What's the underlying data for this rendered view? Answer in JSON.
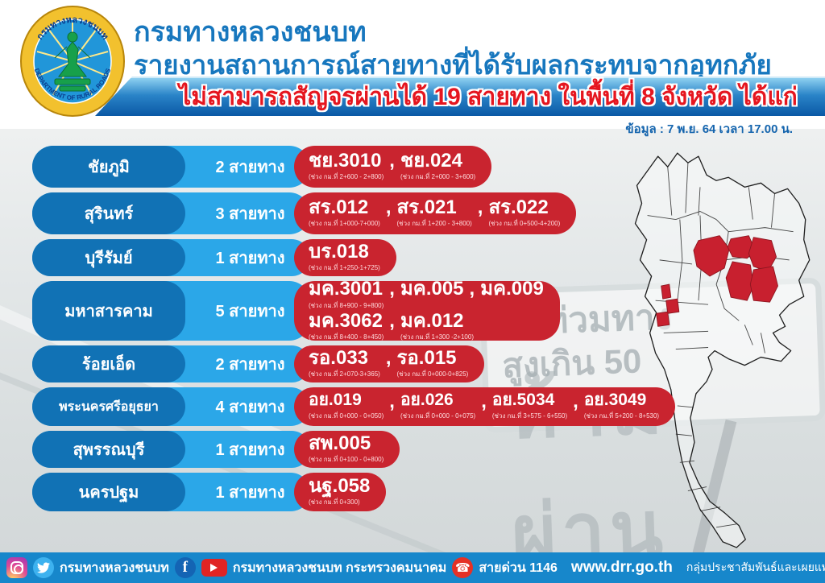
{
  "header": {
    "org_name": "กรมทางหลวงชนบท",
    "report_title": "รายงานสถานการณ์สายทางที่ได้รับผลกระทบจากอุทกภัย",
    "banner": "ไม่สามารถสัญจรผ่านได้ 19 สายทาง ในพื้นที่ 8 จังหวัด ได้แก่",
    "data_timestamp": "ข้อมูล : 7 พ.ย. 64 เวลา 17.00 น.",
    "logo": {
      "ring_text_top": "กรมทางหลวงชนบท",
      "ring_text_bottom": "DEPARTMENT OF RURAL ROADS"
    }
  },
  "rows": [
    {
      "province": "ชัยภูมิ",
      "count_label": "2 สายทาง",
      "route_lines": [
        [
          {
            "code": "ชย.3010",
            "segment": "(ช่วง กม.ที่ 2+600 - 2+800)"
          },
          {
            "code": "ชย.024",
            "segment": "(ช่วง กม.ที่ 2+000 - 3+600)"
          }
        ]
      ]
    },
    {
      "province": "สุรินทร์",
      "count_label": "3 สายทาง",
      "route_lines": [
        [
          {
            "code": "สร.012",
            "segment": "(ช่วง กม.ที่ 1+000-7+000)"
          },
          {
            "code": "สร.021",
            "segment": "(ช่วง กม.ที่ 1+200 - 3+800)"
          },
          {
            "code": "สร.022",
            "segment": "(ช่วง กม.ที่ 0+500-4+200)"
          }
        ]
      ]
    },
    {
      "province": "บุรีรัมย์",
      "count_label": "1 สายทาง",
      "route_lines": [
        [
          {
            "code": "บร.018",
            "segment": "(ช่วง กม.ที่ 1+250-1+725)"
          }
        ]
      ]
    },
    {
      "province": "มหาสารคาม",
      "count_label": "5 สายทาง",
      "route_lines": [
        [
          {
            "code": "มค.3001",
            "segment": "(ช่วง กม.ที่ 8+900 - 9+800)"
          },
          {
            "code": "มค.005",
            "segment": ""
          },
          {
            "code": "มค.009",
            "segment": ""
          }
        ],
        [
          {
            "code": "มค.3062",
            "segment": "(ช่วง กม.ที่ 8+400 - 8+450)"
          },
          {
            "code": "มค.012",
            "segment": "(ช่วง กม.ที่ 1+300 -2+100)"
          }
        ]
      ]
    },
    {
      "province": "ร้อยเอ็ด",
      "count_label": "2 สายทาง",
      "route_lines": [
        [
          {
            "code": "รอ.033",
            "segment": "(ช่วง กม.ที่ 2+070-3+365)"
          },
          {
            "code": "รอ.015",
            "segment": "(ช่วง กม.ที่ 0+000-0+825)"
          }
        ]
      ]
    },
    {
      "province": "พระนครศรีอยุธยา",
      "count_label": "4 สายทาง",
      "route_lines": [
        [
          {
            "code": "อย.019",
            "segment": "(ช่วง กม.ที่ 0+000 - 0+050)"
          },
          {
            "code": "อย.026",
            "segment": "(ช่วง กม.ที่ 0+000 - 0+075)"
          },
          {
            "code": "อย.5034",
            "segment": "(ช่วง กม.ที่ 3+575 - 6+550)"
          },
          {
            "code": "อย.3049",
            "segment": "(ช่วง กม.ที่ 5+200 - 8+530)"
          }
        ]
      ]
    },
    {
      "province": "สุพรรณบุรี",
      "count_label": "1 สายทาง",
      "route_lines": [
        [
          {
            "code": "สพ.005",
            "segment": "(ช่วง กม.ที่ 0+100 - 0+800)"
          }
        ]
      ]
    },
    {
      "province": "นครปฐม",
      "count_label": "1 สายทาง",
      "route_lines": [
        [
          {
            "code": "นฐ.058",
            "segment": "(ช่วง กม.ที่ 0+300)"
          }
        ]
      ]
    }
  ],
  "map": {
    "highlighted_provinces": [
      "ชัยภูมิ",
      "สุรินทร์",
      "บุรีรัมย์",
      "มหาสารคาม",
      "ร้อยเอ็ด",
      "พระนครศรีอยุธยา",
      "สุพรรณบุรี",
      "นครปฐม"
    ]
  },
  "watermark": {
    "sign_line1": "น้ำท่วมทาง",
    "sign_line2": "สูงเกิน 50 เซนติเมตร",
    "big_text": "ห้ามผ่าน"
  },
  "footer": {
    "social_label_1": "กรมทางหลวงชนบท",
    "social_label_2": "กรมทางหลวงชนบท กระทรวงคมนาคม",
    "hotline": "สายด่วน 1146",
    "website": "www.drr.go.th",
    "credit": "กลุ่มประชาสัมพันธ์และเผยแพร่ สำนักบริหารกลาง"
  },
  "colors": {
    "province_pill": "#1172b5",
    "count_bar": "#2ba7e8",
    "routes_pill": "#c9242f",
    "banner_text": "#e5161f",
    "title_blue": "#1777be",
    "footer_bg": "#1787cb",
    "map_highlight": "#c8202f"
  }
}
